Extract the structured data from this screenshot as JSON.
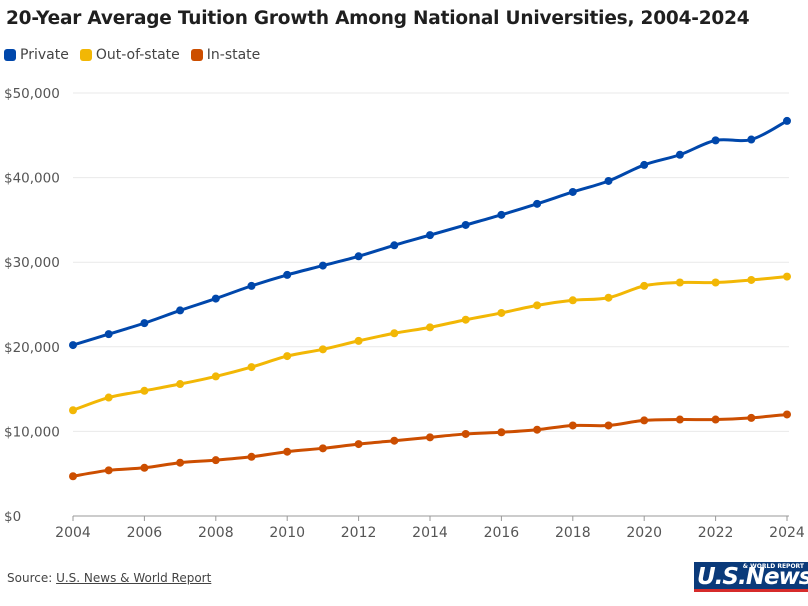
{
  "title": "20-Year Average Tuition Growth Among National Universities, 2004-2024",
  "legend": [
    {
      "label": "Private",
      "color": "#0047AB"
    },
    {
      "label": "Out-of-state",
      "color": "#F2B705"
    },
    {
      "label": "In-state",
      "color": "#CC4E00"
    }
  ],
  "source": {
    "prefix": "Source: ",
    "link_text": "U.S. News & World Report"
  },
  "logo": {
    "small_text": "& WORLD REPORT",
    "big_text": "U.S.News"
  },
  "chart_data": {
    "type": "line",
    "title": "20-Year Average Tuition Growth Among National Universities, 2004-2024",
    "xlabel": "",
    "ylabel": "",
    "x": [
      2004,
      2005,
      2006,
      2007,
      2008,
      2009,
      2010,
      2011,
      2012,
      2013,
      2014,
      2015,
      2016,
      2017,
      2018,
      2019,
      2020,
      2021,
      2022,
      2023,
      2024
    ],
    "xlim": [
      2004,
      2024
    ],
    "x_ticks": [
      "2004",
      "2006",
      "2008",
      "2010",
      "2012",
      "2014",
      "2016",
      "2018",
      "2020",
      "2022",
      "2024"
    ],
    "ylim": [
      0,
      50000
    ],
    "y_ticks": [
      {
        "value": 0,
        "label": "$0"
      },
      {
        "value": 10000,
        "label": "$10,000"
      },
      {
        "value": 20000,
        "label": "$20,000"
      },
      {
        "value": 30000,
        "label": "$30,000"
      },
      {
        "value": 40000,
        "label": "$40,000"
      },
      {
        "value": 50000,
        "label": "$50,000"
      }
    ],
    "grid": true,
    "legend_position": "top-left",
    "series": [
      {
        "name": "Private",
        "color": "#0047AB",
        "values": [
          20200,
          21500,
          22800,
          24300,
          25700,
          27200,
          28500,
          29600,
          30700,
          32000,
          33200,
          34400,
          35600,
          36900,
          38300,
          39600,
          41500,
          42700,
          44400,
          44500,
          46700
        ]
      },
      {
        "name": "Out-of-state",
        "color": "#F2B705",
        "values": [
          12500,
          14000,
          14800,
          15600,
          16500,
          17600,
          18900,
          19700,
          20700,
          21600,
          22300,
          23200,
          24000,
          24900,
          25500,
          25800,
          27200,
          27600,
          27600,
          27900,
          28300
        ]
      },
      {
        "name": "In-state",
        "color": "#CC4E00",
        "values": [
          4700,
          5400,
          5700,
          6300,
          6600,
          7000,
          7600,
          8000,
          8500,
          8900,
          9300,
          9700,
          9900,
          10200,
          10700,
          10700,
          11300,
          11400,
          11400,
          11600,
          12000
        ]
      }
    ]
  }
}
